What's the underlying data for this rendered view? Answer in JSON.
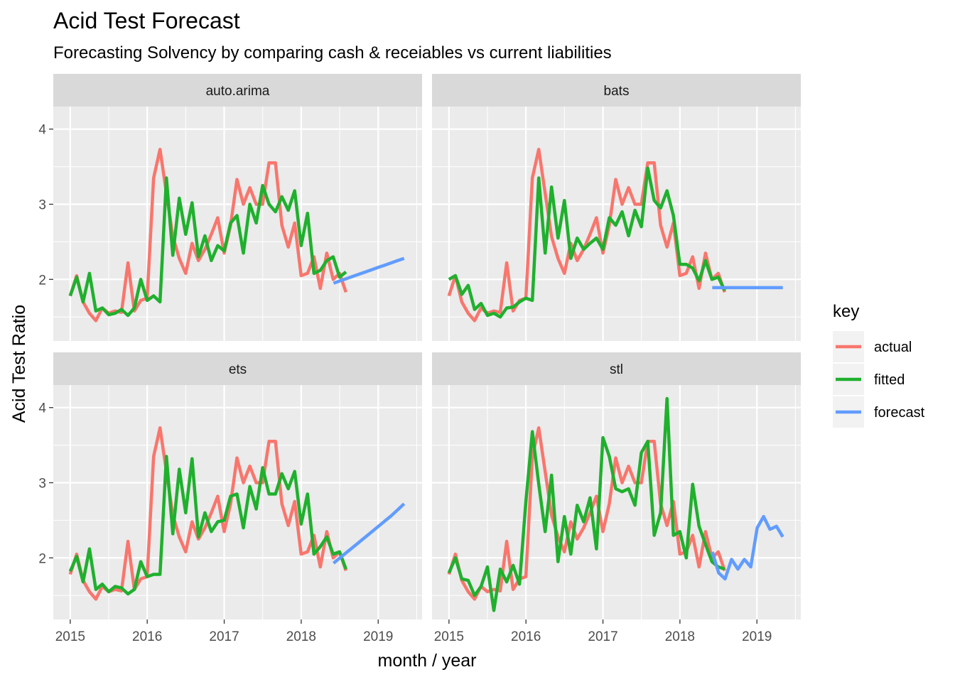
{
  "chart_data": {
    "type": "line",
    "title": "Acid Test Forecast",
    "subtitle": "Forecasting Solvency by comparing cash & receiables vs current liabilities",
    "xlabel": "month / year",
    "ylabel": "Acid Test Ratio",
    "x_ticks": [
      "2015",
      "2016",
      "2017",
      "2018",
      "2019"
    ],
    "y_ticks": [
      "2",
      "3",
      "4"
    ],
    "xlim": [
      2014.78,
      2019.57
    ],
    "ylim": [
      1.18,
      4.3
    ],
    "grid": true,
    "legend": {
      "title": "key",
      "position": "right",
      "entries": [
        {
          "label": "actual",
          "color": "#F8766D"
        },
        {
          "label": "fitted",
          "color": "#1FB02E"
        },
        {
          "label": "forecast",
          "color": "#619CFF"
        }
      ]
    },
    "actual": {
      "start": 2015.0,
      "step": 0.0833,
      "values": [
        1.78,
        2.05,
        1.7,
        1.55,
        1.45,
        1.62,
        1.55,
        1.58,
        1.56,
        2.22,
        1.58,
        1.72,
        1.75,
        3.35,
        3.73,
        3.15,
        2.57,
        2.28,
        2.08,
        2.48,
        2.25,
        2.4,
        2.6,
        2.82,
        2.35,
        2.72,
        3.33,
        3.0,
        3.22,
        3.0,
        3.0,
        3.55,
        3.55,
        2.72,
        2.43,
        2.75,
        2.05,
        2.08,
        2.3,
        1.88,
        2.35,
        2.0,
        2.08,
        1.83
      ]
    },
    "panels": [
      {
        "name": "auto.arima",
        "fitted": [
          1.78,
          2.03,
          1.7,
          2.08,
          1.58,
          1.62,
          1.53,
          1.55,
          1.6,
          1.52,
          1.62,
          2.0,
          1.72,
          1.78,
          1.7,
          3.35,
          2.32,
          3.08,
          2.6,
          3.02,
          2.3,
          2.58,
          2.25,
          2.45,
          2.38,
          2.75,
          2.85,
          2.35,
          3.0,
          2.75,
          3.25,
          3.0,
          2.9,
          3.1,
          2.92,
          3.18,
          2.45,
          2.88,
          2.08,
          2.12,
          2.25,
          2.3,
          2.03,
          2.1
        ],
        "forecast_start": 2018.42,
        "forecast": [
          1.95,
          1.98,
          2.01,
          2.04,
          2.07,
          2.1,
          2.13,
          2.16,
          2.19,
          2.22,
          2.25,
          2.28
        ]
      },
      {
        "name": "bats",
        "fitted": [
          2.0,
          2.05,
          1.8,
          1.92,
          1.6,
          1.68,
          1.52,
          1.55,
          1.5,
          1.62,
          1.63,
          1.7,
          1.75,
          1.72,
          3.35,
          2.35,
          3.23,
          2.55,
          3.05,
          2.28,
          2.55,
          2.4,
          2.48,
          2.55,
          2.4,
          2.82,
          2.72,
          2.9,
          2.58,
          2.92,
          2.7,
          3.48,
          3.05,
          2.95,
          3.18,
          2.85,
          2.2,
          2.2,
          2.15,
          1.98,
          2.25,
          2.0,
          2.03,
          1.85
        ],
        "forecast_start": 2018.42,
        "forecast": [
          1.89,
          1.89,
          1.89,
          1.89,
          1.89,
          1.89,
          1.89,
          1.89,
          1.89,
          1.89,
          1.89,
          1.89
        ]
      },
      {
        "name": "ets",
        "fitted": [
          1.82,
          2.02,
          1.68,
          2.12,
          1.58,
          1.65,
          1.55,
          1.62,
          1.6,
          1.52,
          1.58,
          1.95,
          1.75,
          1.78,
          1.78,
          3.35,
          2.32,
          3.18,
          2.6,
          3.32,
          2.28,
          2.6,
          2.35,
          2.48,
          2.5,
          2.82,
          2.85,
          2.4,
          2.95,
          2.65,
          3.2,
          2.85,
          2.85,
          3.12,
          2.92,
          3.15,
          2.45,
          2.85,
          2.05,
          2.15,
          2.28,
          2.05,
          2.08,
          1.85
        ],
        "forecast_start": 2018.42,
        "forecast": [
          1.93,
          2.0,
          2.07,
          2.14,
          2.21,
          2.28,
          2.35,
          2.42,
          2.49,
          2.56,
          2.64,
          2.72
        ]
      },
      {
        "name": "stl",
        "fitted": [
          1.8,
          2.0,
          1.72,
          1.7,
          1.5,
          1.62,
          1.88,
          1.3,
          1.85,
          1.68,
          1.9,
          1.65,
          2.75,
          3.68,
          2.98,
          2.35,
          3.1,
          1.95,
          2.55,
          2.05,
          2.7,
          2.48,
          2.8,
          2.12,
          3.6,
          3.35,
          2.92,
          2.88,
          2.92,
          2.7,
          3.4,
          3.55,
          2.3,
          2.6,
          4.12,
          2.3,
          2.35,
          2.0,
          2.98,
          2.42,
          2.18,
          1.95,
          1.88,
          1.85
        ],
        "forecast_start": 2018.42,
        "forecast": [
          2.08,
          1.8,
          1.72,
          1.98,
          1.85,
          1.98,
          1.88,
          2.4,
          2.55,
          2.38,
          2.42,
          2.28
        ]
      }
    ]
  }
}
